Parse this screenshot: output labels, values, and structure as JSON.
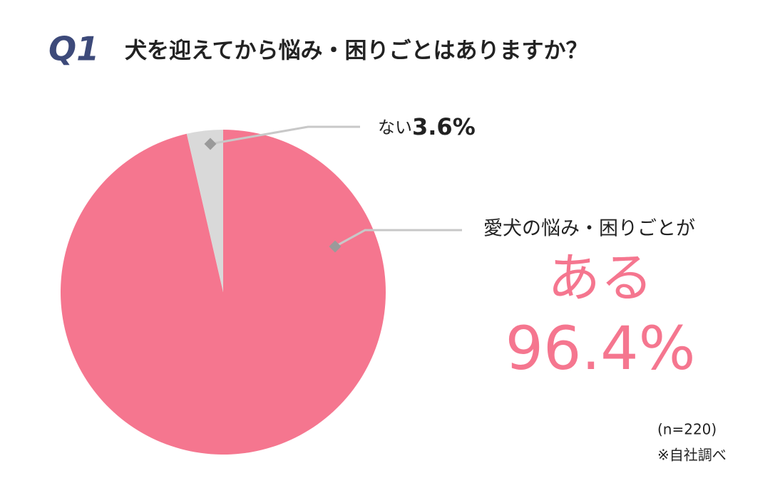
{
  "chart_data": {
    "type": "pie",
    "question_number": "Q1",
    "title": "犬を迎えてから悩み・困りごとはありますか？",
    "categories": [
      "ある",
      "ない"
    ],
    "values": [
      96.4,
      3.6
    ],
    "value_labels": [
      "96.4%",
      "3.6%"
    ],
    "colors": [
      "#f5768f",
      "#d9d9d9"
    ],
    "annotation": "愛犬の悩み・困りごとが",
    "notes": [
      "(n=220)",
      "※自社調べ"
    ]
  }
}
